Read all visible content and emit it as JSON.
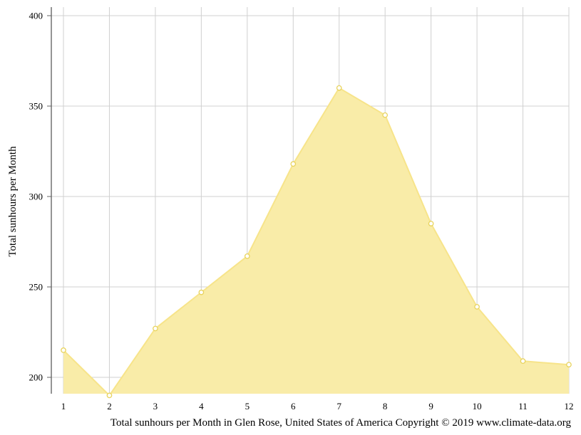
{
  "chart_data": {
    "type": "area",
    "title": "",
    "xlabel": "",
    "ylabel": "Total sunhours per Month",
    "caption": "Total sunhours per Month in Glen Rose, United States of America Copyright © 2019 www.climate-data.org",
    "x": [
      1,
      2,
      3,
      4,
      5,
      6,
      7,
      8,
      9,
      10,
      11,
      12
    ],
    "series": [
      {
        "values": [
          215,
          190,
          227,
          247,
          267,
          318,
          360,
          345,
          285,
          239,
          209,
          207
        ]
      }
    ],
    "yticks": [
      200,
      250,
      300,
      350,
      400
    ],
    "ylim": [
      190,
      400
    ],
    "xlim": [
      1,
      12
    ],
    "grid": true,
    "colors": {
      "fill": "#f9eca8",
      "line": "#f7e48a",
      "marker_fill": "#ffffff",
      "marker_stroke": "#e8d35c"
    }
  }
}
